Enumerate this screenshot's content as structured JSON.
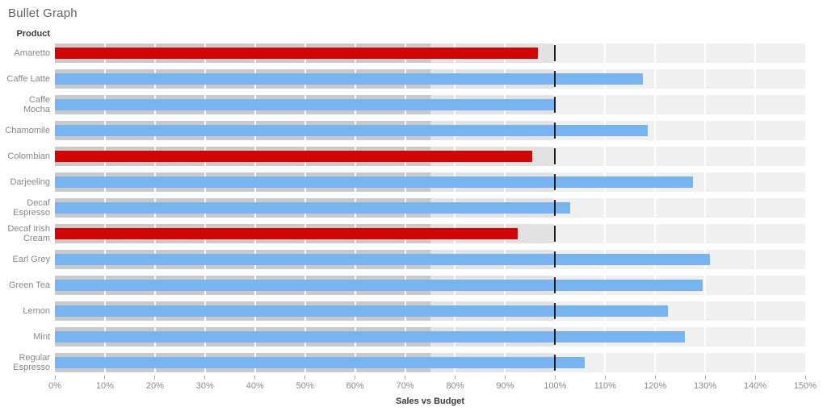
{
  "title": "Bullet Graph",
  "row_header": "Product",
  "x_axis": {
    "title": "Sales vs Budget",
    "min": 0,
    "max": 150,
    "step": 10,
    "tick_labels": [
      "0%",
      "10%",
      "20%",
      "30%",
      "40%",
      "50%",
      "60%",
      "70%",
      "80%",
      "90%",
      "100%",
      "110%",
      "120%",
      "130%",
      "140%",
      "150%"
    ]
  },
  "reference_line": {
    "value": 100,
    "color": "#1c1c1c"
  },
  "bands": [
    {
      "name": "low",
      "from": 0,
      "to": 75,
      "color": "#c9c9c9"
    },
    {
      "name": "mid",
      "from": 75,
      "to": 100,
      "color": "#e2e2e2"
    },
    {
      "name": "high",
      "from": 100,
      "to": 150,
      "color": "#f0f0f0"
    }
  ],
  "colors": {
    "below_budget": "#d20606",
    "at_or_above_budget": "#78b4f2"
  },
  "products": [
    {
      "label": "Amaretto",
      "value": 96.5,
      "status": "below_budget"
    },
    {
      "label": "Caffe Latte",
      "value": 117.5,
      "status": "at_or_above_budget"
    },
    {
      "label": "Caffe Mocha",
      "value": 100,
      "status": "at_or_above_budget"
    },
    {
      "label": "Chamomile",
      "value": 118.5,
      "status": "at_or_above_budget"
    },
    {
      "label": "Colombian",
      "value": 95.5,
      "status": "below_budget"
    },
    {
      "label": "Darjeeling",
      "value": 127.5,
      "status": "at_or_above_budget"
    },
    {
      "label": "Decaf Espresso",
      "value": 103,
      "status": "at_or_above_budget"
    },
    {
      "label": "Decaf Irish Cream",
      "value": 92.5,
      "status": "below_budget"
    },
    {
      "label": "Earl Grey",
      "value": 131,
      "status": "at_or_above_budget"
    },
    {
      "label": "Green Tea",
      "value": 129.5,
      "status": "at_or_above_budget"
    },
    {
      "label": "Lemon",
      "value": 122.5,
      "status": "at_or_above_budget"
    },
    {
      "label": "Mint",
      "value": 126,
      "status": "at_or_above_budget"
    },
    {
      "label": "Regular Espresso",
      "value": 106,
      "status": "at_or_above_budget"
    }
  ],
  "chart_data": {
    "type": "bar",
    "subtype": "bullet",
    "orientation": "horizontal",
    "title": "Bullet Graph",
    "xlabel": "Sales vs Budget",
    "ylabel": "Product",
    "xlim": [
      0,
      150
    ],
    "x_tick_step": 10,
    "x_tick_format": "percent",
    "categories": [
      "Amaretto",
      "Caffe Latte",
      "Caffe Mocha",
      "Chamomile",
      "Colombian",
      "Darjeeling",
      "Decaf Espresso",
      "Decaf Irish Cream",
      "Earl Grey",
      "Green Tea",
      "Lemon",
      "Mint",
      "Regular Espresso"
    ],
    "values": [
      96.5,
      117.5,
      100,
      118.5,
      95.5,
      127.5,
      103,
      92.5,
      131,
      129.5,
      122.5,
      126,
      106
    ],
    "bar_color_rule": "red #d20606 when value < 100, blue #78b4f2 when value >= 100",
    "reference_value": 100,
    "background_bands": [
      [
        0,
        75
      ],
      [
        75,
        100
      ],
      [
        100,
        150
      ]
    ],
    "background_band_colors": [
      "#c9c9c9",
      "#e2e2e2",
      "#f0f0f0"
    ],
    "grid": "white vertical gridlines every 10%",
    "legend": null
  }
}
